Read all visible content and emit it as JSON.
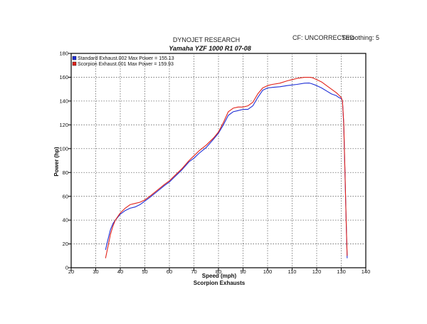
{
  "header": {
    "company": "DYNOJET RESEARCH",
    "cf": "CF: UNCORRECTED",
    "smoothing": "Smoothing: 5"
  },
  "chart_data": {
    "type": "line",
    "title": "Yamaha YZF 1000 R1 07-08",
    "subtitle": "Scorpion Exhausts",
    "xlabel": "Speed (mph)",
    "ylabel": "Power (hp)",
    "xlim": [
      20,
      140
    ],
    "ylim": [
      0,
      180
    ],
    "xticks": [
      20,
      30,
      40,
      50,
      60,
      70,
      80,
      90,
      100,
      110,
      120,
      130,
      140
    ],
    "yticks": [
      0,
      20,
      40,
      60,
      80,
      100,
      120,
      140,
      160,
      180
    ],
    "grid": true,
    "legend_position": "top-left",
    "series": [
      {
        "name": "Standard Exhaust.002 Max Power = 155.13",
        "color": "#1f2fd6",
        "x": [
          34,
          35,
          36,
          37,
          38,
          40,
          42,
          44,
          46,
          48,
          50,
          52,
          55,
          58,
          60,
          62,
          65,
          68,
          70,
          72,
          75,
          78,
          80,
          82,
          84,
          86,
          88,
          90,
          92,
          94,
          96,
          98,
          100,
          102,
          105,
          108,
          110,
          112,
          115,
          117,
          118,
          120,
          122,
          124,
          126,
          128,
          129,
          130,
          130.5,
          131,
          131.5,
          132,
          132.4
        ],
        "y": [
          15,
          24,
          32,
          37,
          40,
          45,
          48,
          50,
          51,
          53,
          56,
          59,
          64,
          69,
          72,
          76,
          82,
          89,
          92,
          96,
          101,
          108,
          113,
          120,
          128,
          131,
          132,
          133,
          133,
          136,
          143,
          149,
          151,
          151.5,
          152,
          153,
          153.5,
          154,
          155,
          155.1,
          154.5,
          153,
          151,
          148.5,
          146,
          144.5,
          143,
          142,
          140,
          120,
          80,
          40,
          8
        ]
      },
      {
        "name": "Scorpion Exhaust.001 Max Power = 159.93",
        "color": "#e2231a",
        "x": [
          34,
          35,
          36,
          37,
          38,
          40,
          42,
          44,
          46,
          48,
          50,
          52,
          55,
          58,
          60,
          62,
          65,
          68,
          70,
          72,
          75,
          78,
          80,
          82,
          84,
          86,
          88,
          90,
          92,
          94,
          96,
          98,
          100,
          102,
          105,
          108,
          110,
          112,
          115,
          117,
          118,
          120,
          122,
          124,
          126,
          128,
          129,
          130,
          130.5,
          131,
          131.5,
          132,
          132.4
        ],
        "y": [
          8,
          18,
          28,
          35,
          40,
          46,
          50,
          53,
          54,
          55,
          57,
          60,
          65,
          70,
          73,
          77,
          83,
          90,
          94,
          98,
          103,
          109,
          114,
          122,
          131,
          134,
          135,
          135,
          136,
          139,
          146,
          151,
          153,
          154,
          155,
          157,
          158,
          159,
          159.9,
          159.9,
          159.7,
          158,
          156,
          153,
          150,
          147,
          145,
          143,
          140,
          122,
          82,
          40,
          10
        ]
      }
    ]
  }
}
